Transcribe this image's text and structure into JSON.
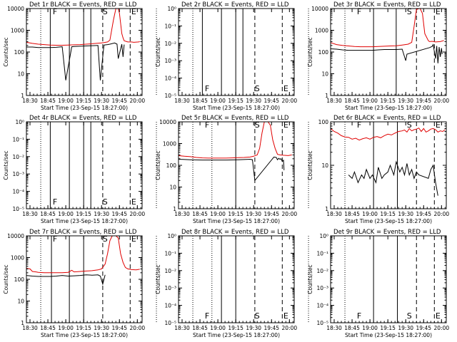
{
  "colors": {
    "events": "#000000",
    "lld": "#e00000",
    "axes": "#000000",
    "background": "#ffffff"
  },
  "chart_data": [
    {
      "id": "det-1r",
      "type": "line",
      "title": "Det 1r BLACK = Events, RED = LLD",
      "xlabel": "Start Time (23-Sep-15 18:27:00)",
      "ylabel": "Counts/sec",
      "yscale": "log",
      "yticklabels": [
        "1",
        "10",
        "100",
        "1000",
        "10000"
      ],
      "xticklabels": [
        "18:30",
        "18:45",
        "19:00",
        "19:15",
        "19:30",
        "19:45",
        "20:00"
      ],
      "markers": [
        "F",
        "S",
        "E"
      ],
      "series": [
        {
          "name": "Events",
          "color": "black",
          "x": [
            0,
            5,
            10,
            15,
            20,
            25,
            30,
            33,
            38,
            40,
            60,
            62,
            65,
            68,
            70,
            74,
            76,
            77,
            80,
            81,
            82,
            82.2,
            90
          ],
          "y": [
            170,
            170,
            160,
            160,
            160,
            165,
            175,
            5,
            175,
            180,
            200,
            5,
            210,
            220,
            230,
            260,
            230,
            50,
            230,
            60,
            220,
            null,
            null
          ]
        },
        {
          "name": "LLD",
          "color": "red",
          "x": [
            0,
            5,
            10,
            15,
            20,
            25,
            30,
            35,
            40,
            45,
            50,
            55,
            60,
            63,
            65,
            68,
            70,
            73,
            75,
            77,
            78,
            80,
            81,
            82,
            85,
            88,
            90,
            92,
            94,
            95
          ],
          "y": [
            280,
            250,
            230,
            220,
            210,
            205,
            205,
            210,
            215,
            220,
            230,
            240,
            255,
            260,
            270,
            290,
            350,
            3000,
            12000,
            12000,
            6000,
            700,
            450,
            330,
            290,
            290,
            280,
            285,
            290,
            300
          ]
        }
      ],
      "vlines": [
        {
          "x": 12,
          "style": "dotted"
        },
        {
          "x": 20,
          "style": "solid"
        },
        {
          "x": 36,
          "style": "solid"
        },
        {
          "x": 48,
          "style": "solid"
        },
        {
          "x": 54,
          "style": "solid"
        },
        {
          "x": 64,
          "style": "dashed"
        },
        {
          "x": 87,
          "style": "dashed"
        },
        {
          "x": 109,
          "style": "dotted"
        }
      ]
    },
    {
      "id": "det-2r",
      "type": "line",
      "title": "Det 2r BLACK = Events, RED = LLD",
      "xlabel": "Start Time (23-Sep-15 18:27:00)",
      "ylabel": "Counts/sec",
      "yscale": "log",
      "yticklabels": [
        "10⁻⁵",
        "10⁻⁴",
        "10⁻³",
        "10⁻²",
        "10⁻¹",
        "10⁰"
      ],
      "xticklabels": [
        "18:30",
        "18:45",
        "19:00",
        "19:15",
        "19:30",
        "19:45",
        "20:00"
      ],
      "markers": [
        "F",
        "S",
        "E"
      ],
      "series": [],
      "vlines": [
        {
          "x": 12,
          "style": "dotted"
        },
        {
          "x": 20,
          "style": "solid"
        },
        {
          "x": 36,
          "style": "solid"
        },
        {
          "x": 48,
          "style": "solid"
        },
        {
          "x": 54,
          "style": "solid"
        },
        {
          "x": 64,
          "style": "dashed"
        },
        {
          "x": 87,
          "style": "dashed"
        },
        {
          "x": 109,
          "style": "dotted"
        }
      ]
    },
    {
      "id": "det-3r",
      "type": "line",
      "title": "Det 3r BLACK = Events, RED = LLD",
      "xlabel": "Start Time (23-Sep-15 18:27:00)",
      "ylabel": "Counts/sec",
      "yscale": "log",
      "yticklabels": [
        "1",
        "10",
        "100",
        "1000",
        "10000"
      ],
      "xticklabels": [
        "18:30",
        "18:45",
        "19:00",
        "19:15",
        "19:30",
        "19:45",
        "20:00"
      ],
      "markers": [
        "F",
        "S",
        "E"
      ],
      "series": [
        {
          "name": "Events",
          "color": "black",
          "x": [
            0,
            5,
            10,
            15,
            20,
            25,
            30,
            35,
            40,
            45,
            50,
            55,
            60,
            63,
            64,
            83,
            85,
            86,
            88,
            89,
            90,
            91,
            92,
            93,
            93.5
          ],
          "y": [
            140,
            135,
            125,
            120,
            120,
            120,
            120,
            120,
            125,
            130,
            130,
            130,
            135,
            40,
            80,
            160,
            180,
            220,
            50,
            190,
            30,
            170,
            60,
            150,
            80
          ]
        },
        {
          "name": "LLD",
          "color": "red",
          "x": [
            0,
            5,
            10,
            15,
            20,
            25,
            30,
            35,
            40,
            45,
            50,
            55,
            60,
            65,
            68,
            70,
            72,
            74,
            75,
            77,
            79,
            82,
            83,
            85,
            88,
            92,
            95
          ],
          "y": [
            270,
            220,
            200,
            190,
            180,
            175,
            175,
            175,
            180,
            185,
            190,
            195,
            210,
            230,
            280,
            1500,
            9000,
            12000,
            12000,
            6000,
            700,
            330,
            300,
            310,
            290,
            300,
            340
          ]
        }
      ],
      "vlines": [
        {
          "x": 12,
          "style": "dotted"
        },
        {
          "x": 36,
          "style": "solid"
        },
        {
          "x": 55,
          "style": "solid"
        },
        {
          "x": 72,
          "style": "dashed"
        },
        {
          "x": 87,
          "style": "dashed"
        },
        {
          "x": 109,
          "style": "dotted"
        }
      ]
    },
    {
      "id": "det-4r",
      "type": "line",
      "title": "Det 4r BLACK = Events, RED = LLD",
      "xlabel": "Start Time (23-Sep-15 18:27:00)",
      "ylabel": "Counts/sec",
      "yscale": "log",
      "yticklabels": [
        "10⁻⁵",
        "10⁻⁴",
        "10⁻³",
        "10⁻²",
        "10⁻¹",
        "10⁰"
      ],
      "xticklabels": [
        "18:30",
        "18:45",
        "19:00",
        "19:15",
        "19:30",
        "19:45",
        "20:00"
      ],
      "markers": [
        "F",
        "S",
        "E"
      ],
      "series": [],
      "vlines": [
        {
          "x": 12,
          "style": "dotted"
        },
        {
          "x": 20,
          "style": "solid"
        },
        {
          "x": 36,
          "style": "solid"
        },
        {
          "x": 48,
          "style": "solid"
        },
        {
          "x": 54,
          "style": "solid"
        },
        {
          "x": 64,
          "style": "dashed"
        },
        {
          "x": 87,
          "style": "dashed"
        },
        {
          "x": 109,
          "style": "dotted"
        }
      ]
    },
    {
      "id": "det-5r",
      "type": "line",
      "title": "Det 5r BLACK = Events, RED = LLD",
      "xlabel": "Start Time (23-Sep-15 18:27:00)",
      "ylabel": "Counts/sec",
      "yscale": "log",
      "yticklabels": [
        "1",
        "10",
        "100",
        "1000",
        "10000"
      ],
      "xticklabels": [
        "18:30",
        "18:45",
        "19:00",
        "19:15",
        "19:30",
        "19:45",
        "20:00"
      ],
      "markers": [
        "F",
        "S",
        "E"
      ],
      "series": [
        {
          "name": "Events",
          "color": "black",
          "x": [
            0,
            10,
            20,
            30,
            40,
            50,
            60,
            62,
            64,
            80,
            82,
            83,
            84,
            85,
            86,
            87,
            88,
            88.5
          ],
          "y": [
            190,
            180,
            175,
            175,
            175,
            180,
            190,
            180,
            20,
            240,
            230,
            180,
            210,
            190,
            200,
            150,
            170,
            60
          ]
        },
        {
          "name": "LLD",
          "color": "red",
          "x": [
            0,
            5,
            10,
            15,
            20,
            25,
            30,
            35,
            40,
            45,
            50,
            55,
            60,
            63,
            66,
            68,
            70,
            72,
            74,
            75,
            77,
            79,
            81,
            83,
            85,
            88,
            92,
            95
          ],
          "y": [
            280,
            260,
            250,
            230,
            220,
            215,
            215,
            215,
            215,
            220,
            225,
            230,
            240,
            260,
            300,
            600,
            3000,
            10000,
            12000,
            12000,
            7000,
            1500,
            600,
            320,
            300,
            290,
            280,
            300
          ]
        }
      ],
      "vlines": [
        {
          "x": 12,
          "style": "dotted"
        },
        {
          "x": 28,
          "style": "dotted"
        },
        {
          "x": 48,
          "style": "solid"
        },
        {
          "x": 64,
          "style": "dashed"
        },
        {
          "x": 87,
          "style": "dashed"
        },
        {
          "x": 109,
          "style": "dotted"
        }
      ]
    },
    {
      "id": "det-6r",
      "type": "line",
      "title": "Det 6r BLACK = Events, RED = LLD",
      "xlabel": "Start Time (23-Sep-15 18:27:00)",
      "ylabel": "Counts/sec",
      "yscale": "log",
      "yticklabels": [
        "1",
        "10",
        "100"
      ],
      "xticklabels": [
        "18:30",
        "18:45",
        "19:00",
        "19:15",
        "19:30",
        "19:45",
        "20:00"
      ],
      "markers": [
        "F",
        "S",
        "E"
      ],
      "series": [
        {
          "name": "Events",
          "color": "black",
          "x": [
            15,
            18,
            20,
            23,
            26,
            28,
            30,
            33,
            35,
            38,
            40,
            43,
            45,
            48,
            50,
            53,
            55,
            58,
            60,
            62,
            64,
            66,
            68,
            70,
            72,
            74,
            82,
            84,
            86,
            88,
            90
          ],
          "y": [
            6,
            5,
            7,
            4,
            6,
            5,
            8,
            5,
            6,
            4,
            9,
            5,
            6,
            7,
            10,
            6,
            12,
            7,
            9,
            6,
            11,
            6,
            8,
            5,
            7,
            6,
            5,
            8,
            10,
            4,
            2
          ]
        },
        {
          "name": "LLD",
          "color": "red",
          "x": [
            0,
            3,
            6,
            9,
            12,
            15,
            18,
            21,
            24,
            27,
            30,
            33,
            36,
            39,
            42,
            45,
            48,
            51,
            54,
            57,
            60,
            62,
            64,
            66,
            68,
            70,
            72,
            74,
            76,
            78,
            80,
            82,
            84,
            86,
            88,
            90,
            92,
            94,
            96
          ],
          "y": [
            70,
            60,
            55,
            48,
            45,
            44,
            40,
            42,
            38,
            41,
            43,
            40,
            44,
            46,
            43,
            48,
            52,
            50,
            55,
            60,
            62,
            65,
            58,
            70,
            62,
            66,
            68,
            72,
            60,
            70,
            58,
            62,
            68,
            70,
            66,
            58,
            62,
            60,
            66
          ]
        }
      ],
      "vlines": [
        {
          "x": 12,
          "style": "dotted"
        },
        {
          "x": 36,
          "style": "solid"
        },
        {
          "x": 56,
          "style": "solid"
        },
        {
          "x": 72,
          "style": "dashed"
        },
        {
          "x": 87,
          "style": "dashed"
        },
        {
          "x": 109,
          "style": "dotted"
        }
      ]
    },
    {
      "id": "det-7r",
      "type": "line",
      "title": "Det 7r BLACK = Events, RED = LLD",
      "xlabel": "Start Time (23-Sep-15 18:27:00)",
      "ylabel": "Counts/sec",
      "yscale": "log",
      "yticklabels": [
        "1",
        "10",
        "100",
        "1000",
        "10000"
      ],
      "xticklabels": [
        "18:30",
        "18:45",
        "19:00",
        "19:15",
        "19:30",
        "19:45",
        "20:00"
      ],
      "markers": [
        "F",
        "S",
        "E"
      ],
      "series": [
        {
          "name": "Events",
          "color": "black",
          "x": [
            0,
            5,
            10,
            15,
            20,
            25,
            30,
            35,
            40,
            45,
            50,
            55,
            60,
            62,
            64,
            66
          ],
          "y": [
            150,
            140,
            135,
            135,
            135,
            140,
            150,
            140,
            145,
            150,
            160,
            155,
            160,
            140,
            60,
            160
          ]
        },
        {
          "name": "LLD",
          "color": "red",
          "x": [
            0,
            3,
            5,
            8,
            10,
            15,
            20,
            25,
            30,
            35,
            38,
            40,
            45,
            50,
            55,
            60,
            63,
            66,
            68,
            70,
            72,
            74,
            75,
            77,
            79,
            81,
            83,
            85,
            88,
            92,
            95
          ],
          "y": [
            320,
            300,
            230,
            220,
            210,
            200,
            200,
            200,
            200,
            210,
            260,
            220,
            230,
            240,
            250,
            270,
            300,
            500,
            1500,
            6000,
            12000,
            12000,
            12000,
            8000,
            1500,
            600,
            350,
            300,
            280,
            270,
            290
          ]
        }
      ],
      "vlines": [
        {
          "x": 12,
          "style": "dotted"
        },
        {
          "x": 21,
          "style": "solid"
        },
        {
          "x": 36,
          "style": "solid"
        },
        {
          "x": 48,
          "style": "solid"
        },
        {
          "x": 64,
          "style": "dashed"
        },
        {
          "x": 87,
          "style": "dashed"
        },
        {
          "x": 109,
          "style": "dotted"
        }
      ]
    },
    {
      "id": "det-8r",
      "type": "line",
      "title": "Det 8r BLACK = Events, RED = LLD",
      "xlabel": "Start Time (23-Sep-15 18:27:00)",
      "ylabel": "Counts/sec",
      "yscale": "log",
      "yticklabels": [
        "10⁻⁵",
        "10⁻⁴",
        "10⁻³",
        "10⁻²",
        "10⁻¹",
        "10⁰"
      ],
      "xticklabels": [
        "18:30",
        "18:45",
        "19:00",
        "19:15",
        "19:30",
        "19:45",
        "20:00"
      ],
      "markers": [
        "F",
        "S",
        "E"
      ],
      "series": [],
      "vlines": [
        {
          "x": 12,
          "style": "dotted"
        },
        {
          "x": 28,
          "style": "dotted"
        },
        {
          "x": 36,
          "style": "solid"
        },
        {
          "x": 48,
          "style": "solid"
        },
        {
          "x": 64,
          "style": "dashed"
        },
        {
          "x": 87,
          "style": "dashed"
        },
        {
          "x": 109,
          "style": "dotted"
        }
      ]
    },
    {
      "id": "det-9r",
      "type": "line",
      "title": "Det 9r BLACK = Events, RED = LLD",
      "xlabel": "Start Time (23-Sep-15 18:27:00)",
      "ylabel": "Counts/sec",
      "yscale": "log",
      "yticklabels": [
        "10⁻⁵",
        "10⁻⁴",
        "10⁻³",
        "10⁻²",
        "10⁻¹",
        "10⁰"
      ],
      "xticklabels": [
        "18:30",
        "18:45",
        "19:00",
        "19:15",
        "19:30",
        "19:45",
        "20:00"
      ],
      "markers": [
        "F",
        "S",
        "E"
      ],
      "series": [],
      "vlines": [
        {
          "x": 12,
          "style": "dotted"
        },
        {
          "x": 36,
          "style": "solid"
        },
        {
          "x": 56,
          "style": "solid"
        },
        {
          "x": 72,
          "style": "dashed"
        },
        {
          "x": 87,
          "style": "dashed"
        },
        {
          "x": 109,
          "style": "dotted"
        }
      ]
    }
  ]
}
